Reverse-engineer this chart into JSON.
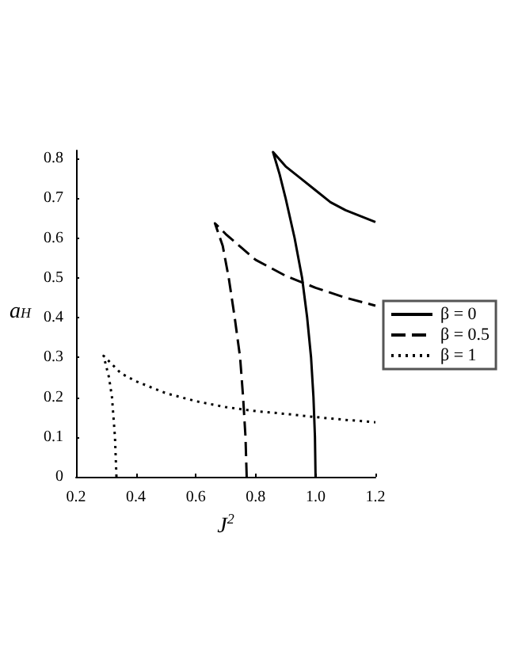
{
  "chart_data": {
    "type": "line",
    "xlabel": "J$^{2}$",
    "ylabel": "a$_{H}$",
    "xlim": [
      0.2,
      1.2
    ],
    "xticks": [
      0.2,
      0.4,
      0.6,
      0.8,
      {
        "value": 1.0,
        "label": "1.0"
      },
      1.2
    ],
    "ylim": [
      0,
      0.82
    ],
    "yticks": [
      0,
      0.1,
      0.2,
      0.3,
      0.4,
      0.5,
      0.6,
      0.7,
      0.8
    ],
    "grid": false,
    "legend": "right",
    "marker": "none",
    "series": [
      {
        "name": "β = 0",
        "color": "#000000",
        "line_style": "solid",
        "x": [
          1.0,
          0.998,
          0.993,
          0.985,
          0.972,
          0.955,
          0.93,
          0.9,
          0.88,
          0.858,
          0.9,
          0.95,
          1.0,
          1.05,
          1.1,
          1.15,
          1.2
        ],
        "values": [
          0,
          0.1,
          0.2,
          0.3,
          0.4,
          0.5,
          0.6,
          0.7,
          0.76,
          0.816,
          0.78,
          0.75,
          0.72,
          0.69,
          0.67,
          0.655,
          0.64
        ]
      },
      {
        "name": "β = 0.5",
        "color": "#000000",
        "line_style": "dashed",
        "x": [
          0.77,
          0.766,
          0.758,
          0.748,
          0.73,
          0.71,
          0.69,
          0.664,
          0.7,
          0.8,
          0.9,
          1.0,
          1.1,
          1.2
        ],
        "values": [
          0,
          0.1,
          0.2,
          0.3,
          0.4,
          0.5,
          0.58,
          0.637,
          0.61,
          0.545,
          0.505,
          0.475,
          0.45,
          0.43
        ]
      },
      {
        "name": "β = 1",
        "color": "#000000",
        "line_style": "dotted",
        "x": [
          0.335,
          0.33,
          0.32,
          0.31,
          0.292,
          0.35,
          0.4,
          0.5,
          0.6,
          0.7,
          0.8,
          0.9,
          1.0,
          1.1,
          1.2
        ],
        "values": [
          0,
          0.1,
          0.2,
          0.25,
          0.304,
          0.26,
          0.24,
          0.21,
          0.19,
          0.175,
          0.165,
          0.158,
          0.15,
          0.143,
          0.137
        ]
      }
    ]
  }
}
